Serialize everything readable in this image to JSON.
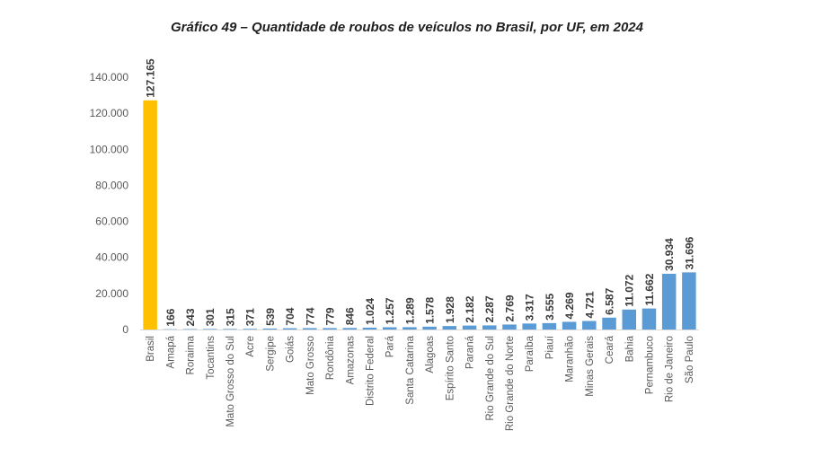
{
  "chart_data": {
    "type": "bar",
    "title": "Gráfico 49 – Quantidade de roubos de veículos no Brasil, por UF, em 2024",
    "xlabel": "",
    "ylabel": "",
    "ylim": [
      0,
      140000
    ],
    "yticks": [
      "0",
      "20.000",
      "40.000",
      "60.000",
      "80.000",
      "100.000",
      "120.000",
      "140.000"
    ],
    "grid": false,
    "legend": "none",
    "colors": {
      "highlight": "#FFC000",
      "default": "#5B9BD5",
      "tick_text": "#595959",
      "label_text": "#3a3a3a"
    },
    "categories": [
      "Brasil",
      "Amapá",
      "Roraima",
      "Tocantins",
      "Mato Grosso do Sul",
      "Acre",
      "Sergipe",
      "Goiás",
      "Mato Grosso",
      "Rondônia",
      "Amazonas",
      "Distrito Federal",
      "Pará",
      "Santa Catarina",
      "Alagoas",
      "Espírito Santo",
      "Paraná",
      "Rio Grande do Sul",
      "Rio Grande do Norte",
      "Paraíba",
      "Piauí",
      "Maranhão",
      "Minas Gerais",
      "Ceará",
      "Bahia",
      "Pernambuco",
      "Rio de Janeiro",
      "São Paulo"
    ],
    "values": [
      127165,
      166,
      243,
      301,
      315,
      371,
      539,
      704,
      774,
      779,
      846,
      1024,
      1257,
      1289,
      1578,
      1928,
      2182,
      2287,
      2769,
      3317,
      3555,
      4269,
      4721,
      6587,
      11072,
      11662,
      30934,
      31696
    ],
    "data_labels": [
      "127.165",
      "166",
      "243",
      "301",
      "315",
      "371",
      "539",
      "704",
      "774",
      "779",
      "846",
      "1.024",
      "1.257",
      "1.289",
      "1.578",
      "1.928",
      "2.182",
      "2.287",
      "2.769",
      "3.317",
      "3.555",
      "4.269",
      "4.721",
      "6.587",
      "11.072",
      "11.662",
      "30.934",
      "31.696"
    ]
  }
}
